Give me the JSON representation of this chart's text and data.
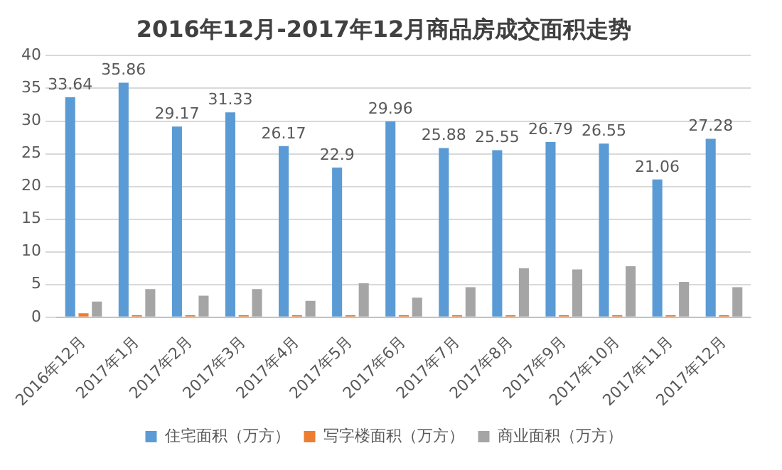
{
  "chart_data": {
    "type": "bar",
    "title": "2016年12月-2017年12月商品房成交面积走势",
    "categories": [
      "2016年12月",
      "2017年1月",
      "2017年2月",
      "2017年3月",
      "2017年4月",
      "2017年5月",
      "2017年6月",
      "2017年7月",
      "2017年8月",
      "2017年9月",
      "2017年10月",
      "2017年11月",
      "2017年12月"
    ],
    "series": [
      {
        "name": "住宅面积（万方）",
        "color": "#5b9bd5",
        "values": [
          33.64,
          35.86,
          29.17,
          31.33,
          26.17,
          22.9,
          29.96,
          25.88,
          25.55,
          26.79,
          26.55,
          21.06,
          27.28
        ],
        "value_labels": [
          "33.64",
          "35.86",
          "29.17",
          "31.33",
          "26.17",
          "22.9",
          "29.96",
          "25.88",
          "25.55",
          "26.79",
          "26.55",
          "21.06",
          "27.28"
        ]
      },
      {
        "name": "写字楼面积（万方）",
        "color": "#ed7d31",
        "values": [
          0.6,
          0.3,
          0.3,
          0.3,
          0.3,
          0.3,
          0.3,
          0.3,
          0.3,
          0.3,
          0.3,
          0.3,
          0.3
        ]
      },
      {
        "name": "商业面积（万方）",
        "color": "#a5a5a5",
        "values": [
          2.4,
          4.3,
          3.3,
          4.3,
          2.5,
          5.2,
          3.0,
          4.6,
          7.5,
          7.3,
          7.8,
          5.4,
          4.6
        ]
      }
    ],
    "ylim": [
      0,
      40
    ],
    "yticks": [
      0,
      5,
      10,
      15,
      20,
      25,
      30,
      35,
      40
    ],
    "grid": "y",
    "legend": "bottom"
  }
}
